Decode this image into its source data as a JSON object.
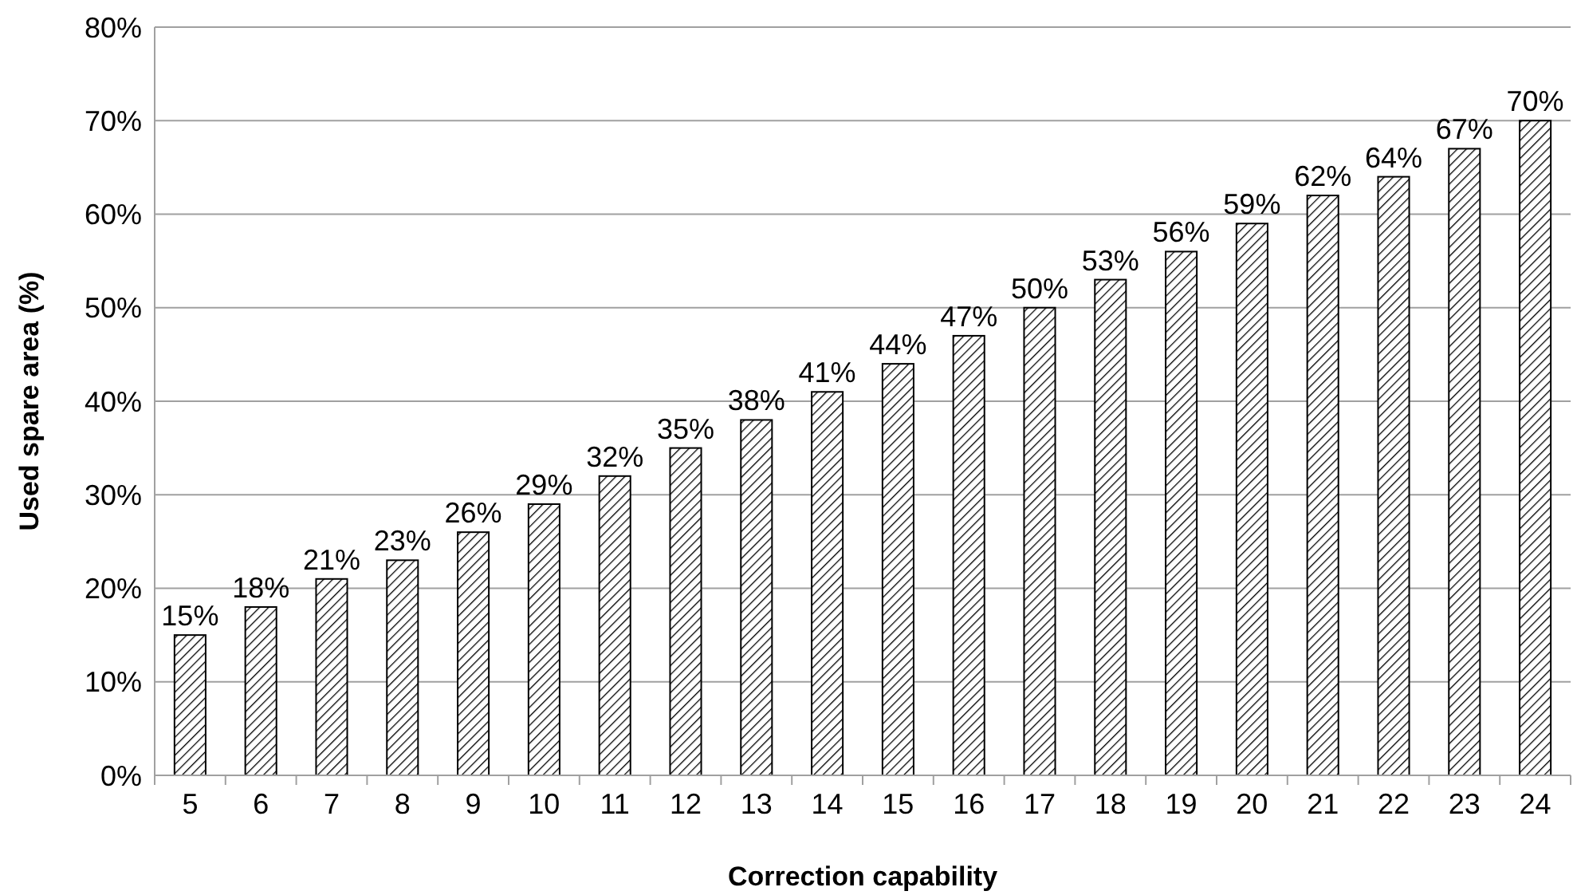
{
  "chart_data": {
    "type": "bar",
    "xlabel": "Correction capability",
    "ylabel": "Used spare area (%)",
    "categories": [
      "5",
      "6",
      "7",
      "8",
      "9",
      "10",
      "11",
      "12",
      "13",
      "14",
      "15",
      "16",
      "17",
      "18",
      "19",
      "20",
      "21",
      "22",
      "23",
      "24"
    ],
    "values": [
      15,
      18,
      21,
      23,
      26,
      29,
      32,
      35,
      38,
      41,
      44,
      47,
      50,
      53,
      56,
      59,
      62,
      64,
      67,
      70
    ],
    "value_labels": [
      "15%",
      "18%",
      "21%",
      "23%",
      "26%",
      "29%",
      "32%",
      "35%",
      "38%",
      "41%",
      "44%",
      "47%",
      "50%",
      "53%",
      "56%",
      "59%",
      "62%",
      "64%",
      "67%",
      "70%"
    ],
    "color": "#000000",
    "ylim": [
      0,
      80
    ],
    "yticks": [
      {
        "value": 0,
        "label": "0%"
      },
      {
        "value": 10,
        "label": "10%"
      },
      {
        "value": 20,
        "label": "20%"
      },
      {
        "value": 30,
        "label": "30%"
      },
      {
        "value": 40,
        "label": "40%"
      },
      {
        "value": 50,
        "label": "50%"
      },
      {
        "value": 60,
        "label": "60%"
      },
      {
        "value": 70,
        "label": "70%"
      },
      {
        "value": 80,
        "label": "80%"
      }
    ],
    "grid": "y"
  }
}
